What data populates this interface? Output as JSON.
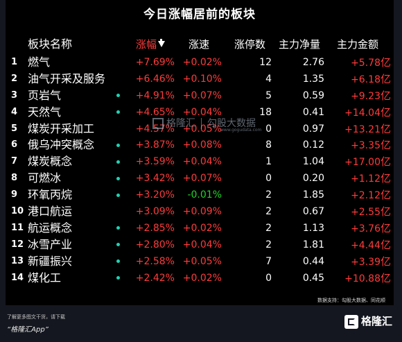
{
  "title": "今日涨幅居前的板块",
  "headers": {
    "name": "板块名称",
    "change": "涨幅",
    "speed": "涨速",
    "limit_up": "涨停数",
    "net_inflow": "主力净量",
    "amount": "主力金额"
  },
  "sort_icon": "down-arrow-icon",
  "rows": [
    {
      "rank": "1",
      "name": "燃气",
      "dot": false,
      "change": "+7.69%",
      "speed": "+0.02%",
      "limit_up": "12",
      "net": "2.76",
      "amount": "+5.78",
      "unit": "亿"
    },
    {
      "rank": "2",
      "name": "油气开采及服务",
      "dot": false,
      "change": "+6.46%",
      "speed": "+0.10%",
      "limit_up": "4",
      "net": "1.35",
      "amount": "+6.18",
      "unit": "亿"
    },
    {
      "rank": "3",
      "name": "页岩气",
      "dot": true,
      "change": "+4.91%",
      "speed": "+0.07%",
      "limit_up": "5",
      "net": "0.59",
      "amount": "+9.23",
      "unit": "亿"
    },
    {
      "rank": "4",
      "name": "天然气",
      "dot": true,
      "change": "+4.65%",
      "speed": "+0.04%",
      "limit_up": "18",
      "net": "0.41",
      "amount": "+14.04",
      "unit": "亿"
    },
    {
      "rank": "5",
      "name": "煤炭开采加工",
      "dot": false,
      "change": "+4.57%",
      "speed": "+0.05%",
      "limit_up": "0",
      "net": "0.97",
      "amount": "+13.21",
      "unit": "亿"
    },
    {
      "rank": "6",
      "name": "俄乌冲突概念",
      "dot": true,
      "change": "+3.87%",
      "speed": "+0.08%",
      "limit_up": "8",
      "net": "0.12",
      "amount": "+3.35",
      "unit": "亿"
    },
    {
      "rank": "7",
      "name": "煤炭概念",
      "dot": true,
      "change": "+3.59%",
      "speed": "+0.04%",
      "limit_up": "1",
      "net": "1.04",
      "amount": "+17.00",
      "unit": "亿"
    },
    {
      "rank": "8",
      "name": "可燃冰",
      "dot": true,
      "change": "+3.42%",
      "speed": "+0.07%",
      "limit_up": "0",
      "net": "0.20",
      "amount": "+1.12",
      "unit": "亿"
    },
    {
      "rank": "9",
      "name": "环氧丙烷",
      "dot": true,
      "change": "+3.20%",
      "speed": "-0.01%",
      "limit_up": "2",
      "net": "1.85",
      "amount": "+2.12",
      "unit": "亿"
    },
    {
      "rank": "10",
      "name": "港口航运",
      "dot": false,
      "change": "+3.09%",
      "speed": "+0.09%",
      "limit_up": "2",
      "net": "0.67",
      "amount": "+2.55",
      "unit": "亿"
    },
    {
      "rank": "11",
      "name": "航运概念",
      "dot": true,
      "change": "+2.85%",
      "speed": "+0.02%",
      "limit_up": "2",
      "net": "1.13",
      "amount": "+3.76",
      "unit": "亿"
    },
    {
      "rank": "12",
      "name": "冰雪产业",
      "dot": true,
      "change": "+2.80%",
      "speed": "+0.04%",
      "limit_up": "2",
      "net": "1.81",
      "amount": "+4.44",
      "unit": "亿"
    },
    {
      "rank": "13",
      "name": "新疆振兴",
      "dot": true,
      "change": "+2.58%",
      "speed": "+0.05%",
      "limit_up": "7",
      "net": "0.44",
      "amount": "+3.39",
      "unit": "亿"
    },
    {
      "rank": "14",
      "name": "煤化工",
      "dot": true,
      "change": "+2.42%",
      "speed": "+0.02%",
      "limit_up": "0",
      "net": "0.45",
      "amount": "+10.88",
      "unit": "亿"
    }
  ],
  "source": "数据支持：勾股大数据、同花顺",
  "watermark": {
    "brand": "格隆汇",
    "product": "勾股大数据",
    "url": "www.gogudata.com"
  },
  "footer": {
    "line1": "了解更多图文干货，请下载",
    "line2": "“格隆汇App”",
    "brand": "格隆汇"
  },
  "colors": {
    "up": "#ff3b3b",
    "down": "#22d32a",
    "dot": "#1fd3b4",
    "background": "#000000"
  }
}
